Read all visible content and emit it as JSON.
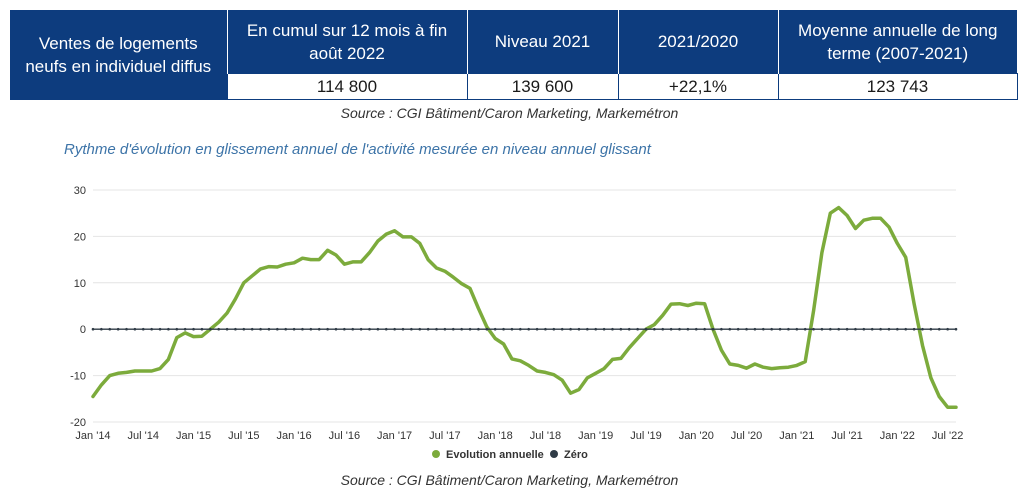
{
  "table": {
    "corner_text": "Ventes de logements neufs en individuel diffus",
    "headers": [
      "En cumul sur 12 mois à fin août 2022",
      "Niveau 2021",
      "2021/2020",
      "Moyenne annuelle de long terme (2007-2021)"
    ],
    "values": [
      "114 800",
      "139 600",
      "+22,1%",
      "123 743"
    ]
  },
  "source_top": "Source : CGI Bâtiment/Caron Marketing, Markemétron",
  "subtitle": "Rythme d'évolution en glissement annuel de l'activité mesurée en niveau annuel glissant",
  "source_bottom": "Source : CGI Bâtiment/Caron Marketing, Markemétron",
  "colors": {
    "header_bg": "#0d3c7e",
    "series_main": "#7cab3c",
    "series_zero": "#2f3b46",
    "subtitle": "#3d74a8"
  },
  "chart_data": {
    "type": "line",
    "title": "",
    "xlabel": "",
    "ylabel": "",
    "ylim": [
      -20,
      30
    ],
    "yticks": [
      30,
      20,
      10,
      0,
      -10,
      -20
    ],
    "grid": true,
    "legend_position": "bottom-center",
    "x_tick_labels": [
      "Jan '14",
      "Jul '14",
      "Jan '15",
      "Jul '15",
      "Jan '16",
      "Jul '16",
      "Jan '17",
      "Jul '17",
      "Jan '18",
      "Jul '18",
      "Jan '19",
      "Jul '19",
      "Jan '20",
      "Jul '20",
      "Jan '21",
      "Jul '21",
      "Jan '22",
      "Jul '22"
    ],
    "x": [
      "2014-01",
      "2014-02",
      "2014-03",
      "2014-04",
      "2014-05",
      "2014-06",
      "2014-07",
      "2014-08",
      "2014-09",
      "2014-10",
      "2014-11",
      "2014-12",
      "2015-01",
      "2015-02",
      "2015-03",
      "2015-04",
      "2015-05",
      "2015-06",
      "2015-07",
      "2015-08",
      "2015-09",
      "2015-10",
      "2015-11",
      "2015-12",
      "2016-01",
      "2016-02",
      "2016-03",
      "2016-04",
      "2016-05",
      "2016-06",
      "2016-07",
      "2016-08",
      "2016-09",
      "2016-10",
      "2016-11",
      "2016-12",
      "2017-01",
      "2017-02",
      "2017-03",
      "2017-04",
      "2017-05",
      "2017-06",
      "2017-07",
      "2017-08",
      "2017-09",
      "2017-10",
      "2017-11",
      "2017-12",
      "2018-01",
      "2018-02",
      "2018-03",
      "2018-04",
      "2018-05",
      "2018-06",
      "2018-07",
      "2018-08",
      "2018-09",
      "2018-10",
      "2018-11",
      "2018-12",
      "2019-01",
      "2019-02",
      "2019-03",
      "2019-04",
      "2019-05",
      "2019-06",
      "2019-07",
      "2019-08",
      "2019-09",
      "2019-10",
      "2019-11",
      "2019-12",
      "2020-01",
      "2020-02",
      "2020-03",
      "2020-04",
      "2020-05",
      "2020-06",
      "2020-07",
      "2020-08",
      "2020-09",
      "2020-10",
      "2020-11",
      "2020-12",
      "2021-01",
      "2021-02",
      "2021-03",
      "2021-04",
      "2021-05",
      "2021-06",
      "2021-07",
      "2021-08",
      "2021-09",
      "2021-10",
      "2021-11",
      "2021-12",
      "2022-01",
      "2022-02",
      "2022-03",
      "2022-04",
      "2022-05",
      "2022-06",
      "2022-07",
      "2022-08"
    ],
    "series": [
      {
        "name": "Evolution annuelle",
        "color": "#7cab3c",
        "values": [
          -14.5,
          -12,
          -10,
          -9.5,
          -9.3,
          -9,
          -9,
          -9,
          -8.5,
          -6.5,
          -1.8,
          -0.8,
          -1.6,
          -1.5,
          0,
          1.5,
          3.5,
          6.5,
          10,
          11.5,
          13,
          13.5,
          13.4,
          14,
          14.3,
          15.3,
          15,
          15,
          17,
          16,
          14,
          14.5,
          14.5,
          16.5,
          19,
          20.5,
          21.2,
          19.9,
          19.9,
          18.5,
          15,
          13.2,
          12.5,
          11.2,
          9.8,
          8.8,
          4.5,
          0.5,
          -2,
          -3.2,
          -6.4,
          -6.8,
          -7.8,
          -9,
          -9.3,
          -9.8,
          -11,
          -13.8,
          -13,
          -10.5,
          -9.5,
          -8.5,
          -6.5,
          -6.3,
          -4,
          -2,
          0,
          1,
          3,
          5.4,
          5.5,
          5.1,
          5.6,
          5.5,
          0,
          -4.5,
          -7.5,
          -7.8,
          -8.4,
          -7.5,
          -8.2,
          -8.5,
          -8.3,
          -8.2,
          -7.8,
          -7,
          4,
          16.5,
          25,
          26.2,
          24.5,
          21.7,
          23.5,
          23.9,
          23.9,
          22,
          18.5,
          15.5,
          5.5,
          -3.5,
          -10.5,
          -14.5,
          -16.8,
          -16.8
        ]
      },
      {
        "name": "Zéro",
        "color": "#2f3b46",
        "values": [
          0,
          0,
          0,
          0,
          0,
          0,
          0,
          0,
          0,
          0,
          0,
          0,
          0,
          0,
          0,
          0,
          0,
          0,
          0,
          0,
          0,
          0,
          0,
          0,
          0,
          0,
          0,
          0,
          0,
          0,
          0,
          0,
          0,
          0,
          0,
          0,
          0,
          0,
          0,
          0,
          0,
          0,
          0,
          0,
          0,
          0,
          0,
          0,
          0,
          0,
          0,
          0,
          0,
          0,
          0,
          0,
          0,
          0,
          0,
          0,
          0,
          0,
          0,
          0,
          0,
          0,
          0,
          0,
          0,
          0,
          0,
          0,
          0,
          0,
          0,
          0,
          0,
          0,
          0,
          0,
          0,
          0,
          0,
          0,
          0,
          0,
          0,
          0,
          0,
          0,
          0,
          0,
          0,
          0,
          0,
          0,
          0,
          0,
          0,
          0,
          0,
          0,
          0,
          0
        ]
      }
    ]
  }
}
